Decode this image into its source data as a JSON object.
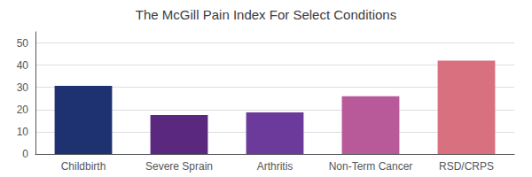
{
  "chart_data": {
    "type": "bar",
    "title": "The McGill Pain Index For Select Conditions",
    "categories": [
      "Childbirth",
      "Severe Sprain",
      "Arthritis",
      "Non-Term Cancer",
      "RSD/CRPS"
    ],
    "values": [
      30.7,
      17.5,
      18.7,
      26.0,
      42.0
    ],
    "colors": [
      "#1e3170",
      "#5b2880",
      "#6b3a9a",
      "#b85a9a",
      "#d97080"
    ],
    "ylim": [
      0,
      55
    ],
    "yticks": [
      0,
      10,
      20,
      30,
      40,
      50
    ],
    "grid": true
  }
}
